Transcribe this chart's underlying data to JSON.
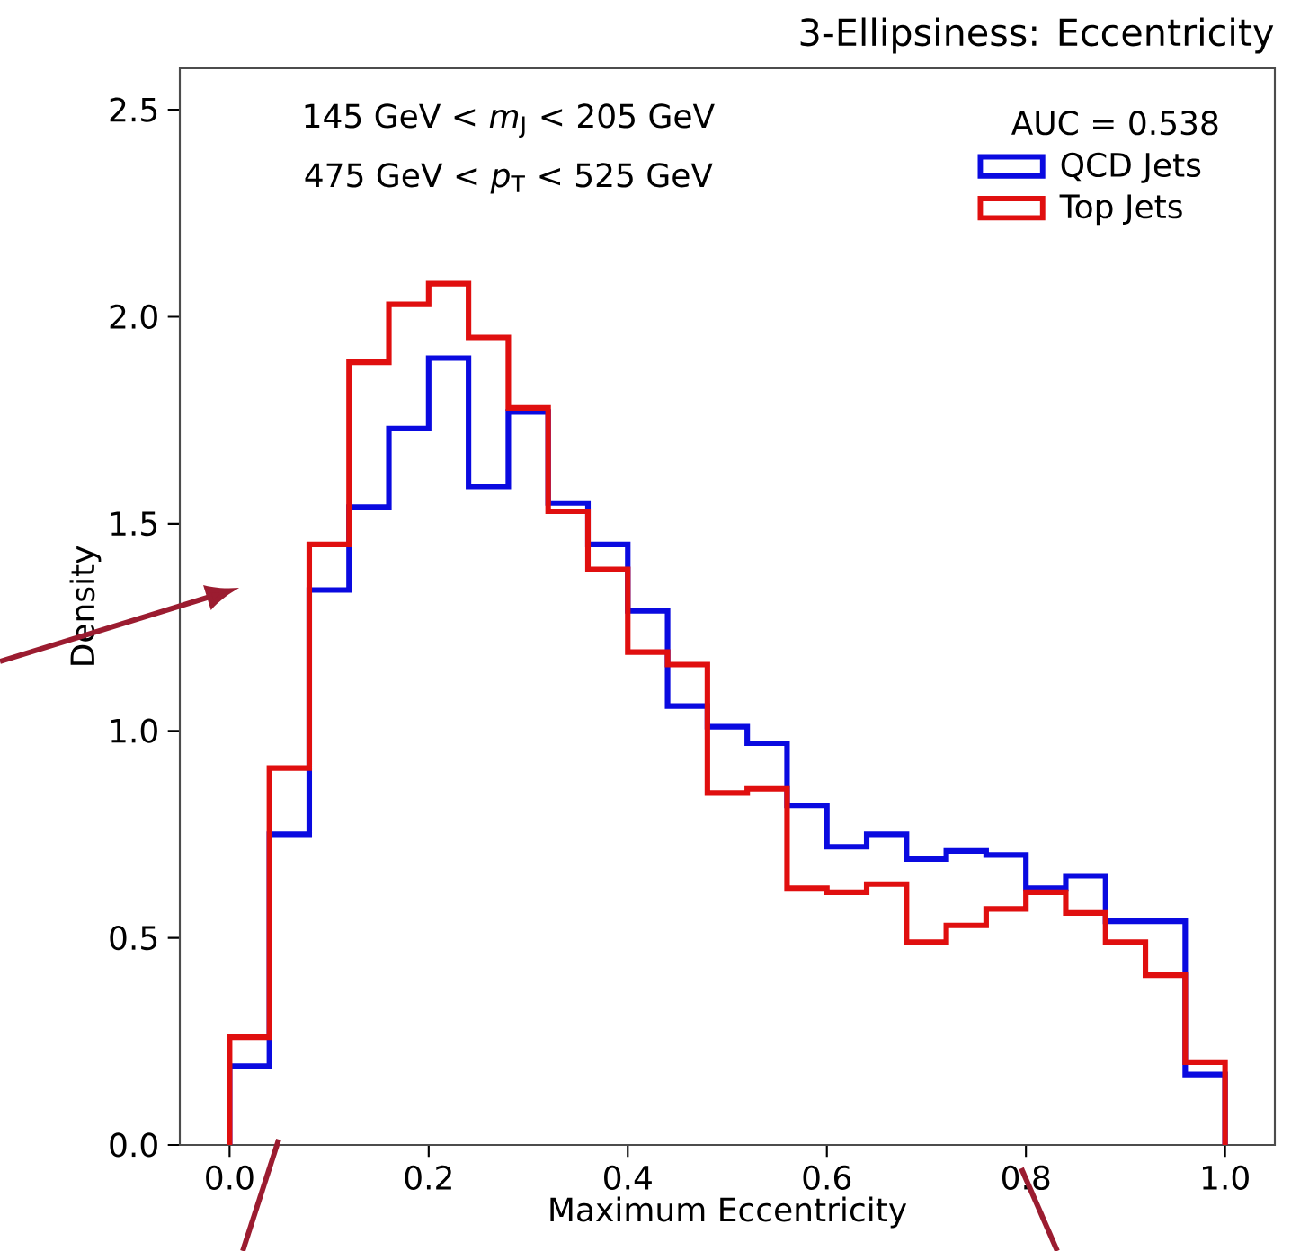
{
  "chart_data": {
    "type": "histogram",
    "title": "3-Ellipsiness: Eccentricity",
    "xlabel": "Maximum Eccentricity",
    "ylabel": "Density",
    "legend_title": "AUC = 0.538",
    "annotations": [
      "145 GeV < *m*$_{J}$ < 205 GeV",
      "475 GeV < *p*$_{T}$ < 525 GeV"
    ],
    "bins": [
      0,
      0.04,
      0.08,
      0.12,
      0.16,
      0.2,
      0.24,
      0.28,
      0.32,
      0.36,
      0.4,
      0.44,
      0.48,
      0.52,
      0.56,
      0.6,
      0.64,
      0.68,
      0.72,
      0.76,
      0.8,
      0.84,
      0.88,
      0.92,
      0.96,
      1.0
    ],
    "series": [
      {
        "name": "QCD Jets",
        "color": "#0a0ae0",
        "values": [
          0.19,
          0.75,
          1.34,
          1.54,
          1.73,
          1.9,
          1.59,
          1.77,
          1.55,
          1.45,
          1.29,
          1.06,
          1.01,
          0.97,
          0.82,
          0.72,
          0.75,
          0.69,
          0.71,
          0.7,
          0.62,
          0.65,
          0.54,
          0.54,
          0.17
        ]
      },
      {
        "name": "Top Jets",
        "color": "#e00f0f",
        "values": [
          0.26,
          0.91,
          1.45,
          1.89,
          2.03,
          2.08,
          1.95,
          1.78,
          1.53,
          1.39,
          1.19,
          1.16,
          0.85,
          0.86,
          0.62,
          0.61,
          0.63,
          0.49,
          0.53,
          0.57,
          0.61,
          0.56,
          0.49,
          0.41,
          0.2
        ]
      }
    ],
    "xlim": [
      -0.05,
      1.05
    ],
    "ylim": [
      0,
      2.6
    ],
    "xticks": [
      {
        "value": 0,
        "label": "0.0"
      },
      {
        "value": 0.2,
        "label": "0.2"
      },
      {
        "value": 0.4,
        "label": "0.4"
      },
      {
        "value": 0.6,
        "label": "0.6"
      },
      {
        "value": 0.8,
        "label": "0.8"
      },
      {
        "value": 1.0,
        "label": "1.0"
      }
    ],
    "yticks": [
      {
        "value": 0,
        "label": "0.0"
      },
      {
        "value": 0.5,
        "label": "0.5"
      },
      {
        "value": 1.0,
        "label": "1.0"
      },
      {
        "value": 1.5,
        "label": "1.5"
      },
      {
        "value": 2.0,
        "label": "2.0"
      },
      {
        "value": 2.5,
        "label": "2.5"
      }
    ],
    "legend": "top right",
    "grid": false
  }
}
